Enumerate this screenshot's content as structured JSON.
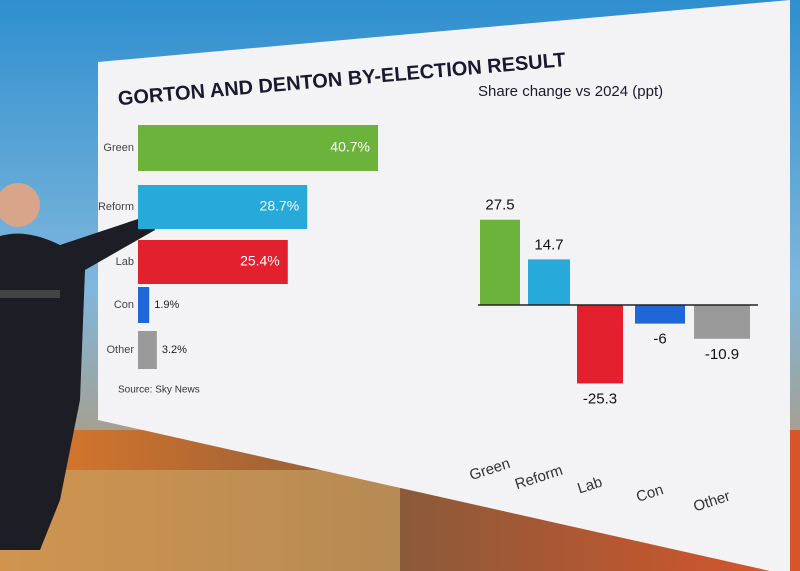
{
  "chart_data": [
    {
      "type": "hbar",
      "title": "GORTON AND DENTON BY-ELECTION RESULT",
      "categories": [
        "Green",
        "Reform",
        "Lab",
        "Con",
        "Other"
      ],
      "values": [
        40.7,
        28.7,
        25.4,
        1.9,
        3.2
      ],
      "value_labels": [
        "40.7%",
        "28.7%",
        "25.4%",
        "1.9%",
        "3.2%"
      ],
      "colors": [
        "#6bb33a",
        "#27a9d9",
        "#e3202e",
        "#1f66d6",
        "#9a9a9a"
      ],
      "source": "Source: Sky News"
    },
    {
      "type": "bar",
      "title": "Share change vs 2024 (ppt)",
      "categories": [
        "Green",
        "Reform",
        "Lab",
        "Con",
        "Other"
      ],
      "values": [
        27.5,
        14.7,
        -25.3,
        -6,
        -10.9
      ],
      "colors": [
        "#6bb33a",
        "#27a9d9",
        "#e3202e",
        "#1f66d6",
        "#9a9a9a"
      ]
    }
  ]
}
